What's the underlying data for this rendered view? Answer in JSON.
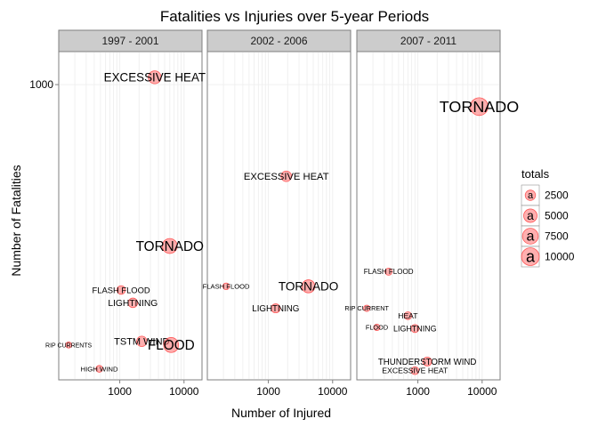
{
  "chart_data": {
    "type": "scatter",
    "title": "Fatalities vs Injuries over 5-year Periods",
    "xlabel": "Number of Injured",
    "ylabel": "Number of Fatalities",
    "x_scale": "log10",
    "x_ticks": [
      {
        "value": 1000,
        "label": "1000"
      },
      {
        "value": 10000,
        "label": "10000"
      }
    ],
    "y_ticks": [
      {
        "value": 1000,
        "label": "1000"
      }
    ],
    "legend": {
      "title": "totals",
      "glyph": "a",
      "position": "right",
      "entries": [
        {
          "value": 2500,
          "label": "2500"
        },
        {
          "value": 5000,
          "label": "5000"
        },
        {
          "value": 7500,
          "label": "7500"
        },
        {
          "value": 10000,
          "label": "10000"
        }
      ]
    },
    "panels": [
      {
        "label": "1997 - 2001",
        "points": [
          {
            "event": "EXCESSIVE HEAT",
            "injured": 3500,
            "fatalities": 1020
          },
          {
            "event": "TORNADO",
            "injured": 6000,
            "fatalities": 560
          },
          {
            "event": "FLASH FLOOD",
            "injured": 1050,
            "fatalities": 440
          },
          {
            "event": "LIGHTNING",
            "injured": 1600,
            "fatalities": 405
          },
          {
            "event": "TSTM WIND",
            "injured": 2200,
            "fatalities": 300
          },
          {
            "event": "FLOOD",
            "injured": 6300,
            "fatalities": 290
          },
          {
            "event": "RIP CURRENTS",
            "injured": 160,
            "fatalities": 290
          },
          {
            "event": "HIGH WIND",
            "injured": 480,
            "fatalities": 225
          }
        ]
      },
      {
        "label": "2002 - 2006",
        "points": [
          {
            "event": "EXCESSIVE HEAT",
            "injured": 1900,
            "fatalities": 750
          },
          {
            "event": "TORNADO",
            "injured": 4200,
            "fatalities": 450
          },
          {
            "event": "FLASH FLOOD",
            "injured": 220,
            "fatalities": 450
          },
          {
            "event": "LIGHTNING",
            "injured": 1300,
            "fatalities": 390
          }
        ]
      },
      {
        "label": "2007 - 2011",
        "points": [
          {
            "event": "TORNADO",
            "injured": 9000,
            "fatalities": 940
          },
          {
            "event": "FLASH FLOOD",
            "injured": 350,
            "fatalities": 490
          },
          {
            "event": "RIP CURRENT",
            "injured": 160,
            "fatalities": 390
          },
          {
            "event": "HEAT",
            "injured": 700,
            "fatalities": 370
          },
          {
            "event": "LIGHTNING",
            "injured": 900,
            "fatalities": 335
          },
          {
            "event": "FLOOD",
            "injured": 230,
            "fatalities": 338
          },
          {
            "event": "THUNDERSTORM WIND",
            "injured": 1400,
            "fatalities": 245
          },
          {
            "event": "EXCESSIVE HEAT",
            "injured": 900,
            "fatalities": 220
          }
        ]
      }
    ]
  }
}
